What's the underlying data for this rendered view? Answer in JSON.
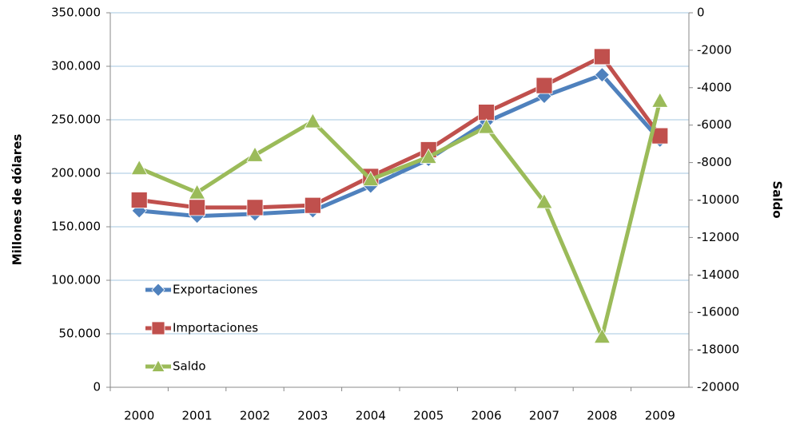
{
  "chart_data": {
    "type": "line",
    "categories": [
      "2000",
      "2001",
      "2002",
      "2003",
      "2004",
      "2005",
      "2006",
      "2007",
      "2008",
      "2009"
    ],
    "series": [
      {
        "name": "Exportaciones",
        "color": "#4f81bd",
        "values": [
          165000,
          160000,
          162000,
          165000,
          188000,
          213000,
          248000,
          272000,
          292000,
          231000
        ]
      },
      {
        "name": "Importaciones",
        "color": "#c0504d",
        "values": [
          175000,
          168000,
          168000,
          170000,
          197000,
          222000,
          257000,
          282000,
          309000,
          235000
        ]
      },
      {
        "name": "Saldo",
        "color": "#9bbb59",
        "axis": "y2",
        "values": [
          -8300,
          -9600,
          -7600,
          -5800,
          -8900,
          -7700,
          -6100,
          -10100,
          -17300,
          -4700
        ]
      }
    ],
    "ylabel": "Millones de dólares",
    "y2label": "Saldo",
    "ylim": [
      0,
      350000
    ],
    "yticks": [
      0,
      {
        "value": 50000,
        "label": "50.000"
      },
      {
        "value": 100000,
        "label": "100.000"
      },
      {
        "value": 150000,
        "label": "150.000"
      },
      {
        "value": 200000,
        "label": "200.000"
      },
      {
        "value": 250000,
        "label": "250.000"
      },
      {
        "value": 300000,
        "label": "300.000"
      },
      {
        "value": 350000,
        "label": "350.000"
      }
    ],
    "y2lim": [
      -20000,
      0
    ],
    "y2ticks": [
      -20000,
      -18000,
      -16000,
      -14000,
      -12000,
      -10000,
      -8000,
      -6000,
      -4000,
      -2000,
      0
    ],
    "grid": true,
    "legend": "left"
  }
}
